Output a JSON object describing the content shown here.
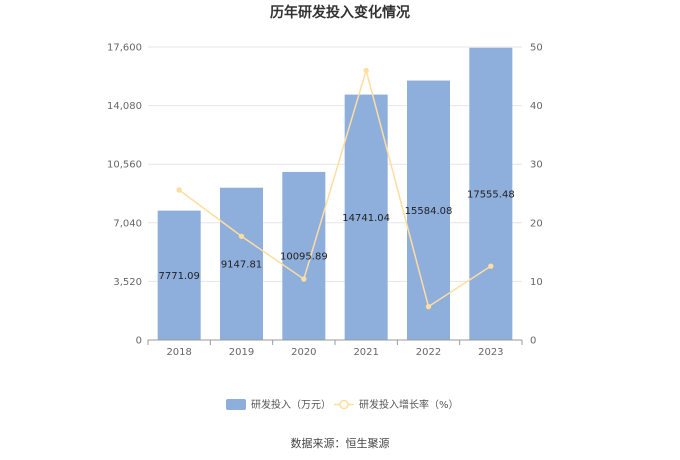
{
  "chart_data": {
    "type": "bar",
    "title": "历年研发投入变化情况",
    "categories": [
      "2018",
      "2019",
      "2020",
      "2021",
      "2022",
      "2023"
    ],
    "series": [
      {
        "name": "研发投入（万元）",
        "type": "bar",
        "axis": "left",
        "values": [
          7771.09,
          9147.81,
          10095.89,
          14741.04,
          15584.08,
          17555.48
        ],
        "labels": [
          "7771.09",
          "9147.81",
          "10095.89",
          "14741.04",
          "15584.08",
          "17555.48"
        ]
      },
      {
        "name": "研发投入增长率（%）",
        "type": "line",
        "axis": "right",
        "values": [
          25.6,
          17.7,
          10.4,
          46.0,
          5.7,
          12.6
        ]
      }
    ],
    "y_left": {
      "min": 0,
      "max": 17600,
      "ticks": [
        "0",
        "3,520",
        "7,040",
        "10,560",
        "14,080",
        "17,600"
      ],
      "tick_values": [
        0,
        3520,
        7040,
        10560,
        14080,
        17600
      ]
    },
    "y_right": {
      "min": 0,
      "max": 50,
      "ticks": [
        "0",
        "10",
        "20",
        "30",
        "40",
        "50"
      ],
      "tick_values": [
        0,
        10,
        20,
        30,
        40,
        50
      ]
    },
    "grid": true,
    "legend_position": "bottom"
  },
  "colors": {
    "bar": "#8eaedb",
    "line": "#fddda0",
    "grid": "#e6e6e6",
    "axis": "#999999"
  },
  "source_text": "数据来源：恒生聚源"
}
